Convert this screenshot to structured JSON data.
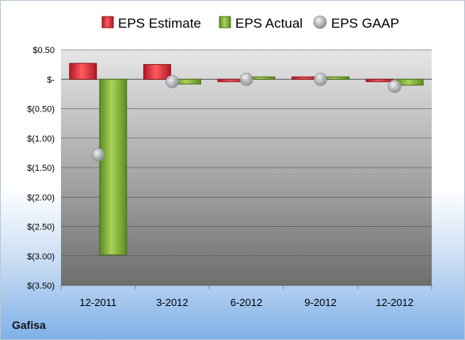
{
  "company": "Gafisa",
  "chart_data": {
    "type": "bar",
    "categories": [
      "12-2011",
      "3-2012",
      "6-2012",
      "9-2012",
      "12-2012"
    ],
    "series": [
      {
        "name": "EPS Estimate",
        "kind": "bar",
        "color": "#e0303a",
        "values": [
          0.27,
          0.25,
          -0.02,
          0.02,
          -0.02
        ]
      },
      {
        "name": "EPS Actual",
        "kind": "bar",
        "color": "#8cbd3a",
        "values": [
          -2.98,
          -0.08,
          0.0,
          0.0,
          -0.1
        ]
      },
      {
        "name": "EPS GAAP",
        "kind": "marker",
        "color": "#b8bcc4",
        "values": [
          -1.28,
          -0.04,
          0.0,
          0.0,
          -0.12
        ]
      }
    ],
    "ylim": [
      -3.5,
      0.5
    ],
    "yticks": [
      {
        "value": 0.5,
        "label": "$0.50"
      },
      {
        "value": 0.0,
        "label": "$-"
      },
      {
        "value": -0.5,
        "label": "$(0.50)"
      },
      {
        "value": -1.0,
        "label": "$(1.00)"
      },
      {
        "value": -1.5,
        "label": "$(1.50)"
      },
      {
        "value": -2.0,
        "label": "$(2.00)"
      },
      {
        "value": -2.5,
        "label": "$(2.50)"
      },
      {
        "value": -3.0,
        "label": "$(3.00)"
      },
      {
        "value": -3.5,
        "label": "$(3.50)"
      }
    ],
    "grid": true,
    "legend_position": "top"
  }
}
